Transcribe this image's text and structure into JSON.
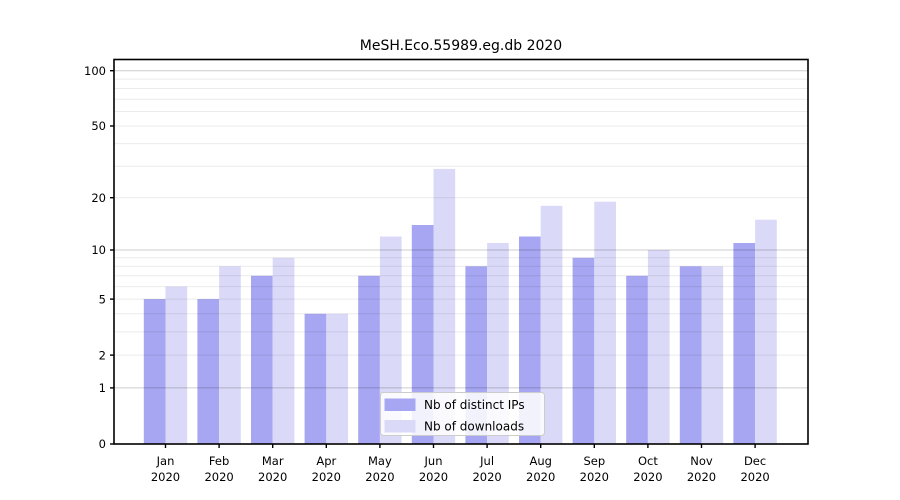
{
  "chart_data": {
    "type": "bar",
    "title": "MeSH.Eco.55989.eg.db 2020",
    "categories": [
      "Jan 2020",
      "Feb 2020",
      "Mar 2020",
      "Apr 2020",
      "May 2020",
      "Jun 2020",
      "Jul 2020",
      "Aug 2020",
      "Sep 2020",
      "Oct 2020",
      "Nov 2020",
      "Dec 2020"
    ],
    "series": [
      {
        "key": "distinct-ips",
        "name": "Nb of distinct IPs",
        "color": "#a6a6f2",
        "values": [
          5,
          5,
          7,
          4,
          7,
          14,
          8,
          12,
          9,
          7,
          8,
          11
        ]
      },
      {
        "key": "downloads",
        "name": "Nb of downloads",
        "color": "#dadaf8",
        "values": [
          6,
          8,
          9,
          4,
          12,
          29,
          11,
          18,
          19,
          10,
          8,
          15
        ]
      }
    ],
    "xlabel": "",
    "ylabel": "",
    "yscale": "log1p",
    "ylim": [
      0,
      115
    ],
    "yticks": [
      0,
      1,
      2,
      5,
      10,
      20,
      50,
      100
    ],
    "grid": {
      "on": true,
      "major_values": [
        1,
        10,
        100
      ],
      "minor_values": [
        2,
        3,
        4,
        5,
        6,
        7,
        8,
        9,
        20,
        30,
        40,
        50,
        60,
        70,
        80,
        90
      ]
    },
    "legend": {
      "position": "inside-bottom-center"
    }
  }
}
